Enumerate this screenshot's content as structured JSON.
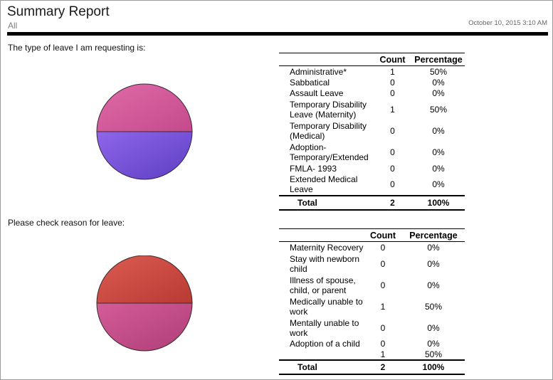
{
  "header": {
    "title": "Summary Report",
    "subtitle": "All",
    "date": "October 10, 2015 3:10 AM"
  },
  "sections": [
    {
      "question": "The type of leave I am requesting is:",
      "columns": {
        "count": "Count",
        "percentage": "Percentage"
      },
      "rows": [
        {
          "label": "Administrative*",
          "count": "1",
          "percentage": "50%",
          "color": "#8a5be0"
        },
        {
          "label": "Sabbatical",
          "count": "0",
          "percentage": "0%",
          "color": "#e8974a"
        },
        {
          "label": "Assault Leave",
          "count": "0",
          "percentage": "0%",
          "color": "#6ad98f"
        },
        {
          "label": "Temporary Disability Leave (Maternity)",
          "count": "1",
          "percentage": "50%",
          "color": "#d4589a"
        },
        {
          "label": "Temporary Disability (Medical)",
          "count": "0",
          "percentage": "0%",
          "color": "#a4de4a"
        },
        {
          "label": "Adoption- Temporary/Extended",
          "count": "0",
          "percentage": "0%",
          "color": "#4f95e8"
        },
        {
          "label": "FMLA- 1993",
          "count": "0",
          "percentage": "0%",
          "color": "#d94b4b"
        },
        {
          "label": "Extended Medical Leave",
          "count": "0",
          "percentage": "0%",
          "color": "#5fdc4a"
        }
      ],
      "total": {
        "label": "Total",
        "count": "2",
        "percentage": "100%"
      },
      "pie": {
        "top_color": "#d4589a",
        "bottom_color": "#7b50dc"
      }
    },
    {
      "question": "Please check reason for leave:",
      "columns": {
        "count": "Count",
        "percentage": "Percentage"
      },
      "rows": [
        {
          "label": "Maternity Recovery",
          "count": "0",
          "percentage": "0%",
          "color": "#8a5be0"
        },
        {
          "label": "Stay with newborn child",
          "count": "0",
          "percentage": "0%",
          "color": "#e8974a"
        },
        {
          "label": "Illness of spouse, child, or parent",
          "count": "0",
          "percentage": "0%",
          "color": "#6ad98f"
        },
        {
          "label": "Medically unable to work",
          "count": "1",
          "percentage": "50%",
          "color": "#d4589a"
        },
        {
          "label": "Mentally unable to work",
          "count": "0",
          "percentage": "0%",
          "color": "#a4de4a"
        },
        {
          "label": "Adoption of a child",
          "count": "0",
          "percentage": "0%",
          "color": "#4f95e8"
        },
        {
          "label": "",
          "count": "1",
          "percentage": "50%",
          "color": "#d94b4b"
        }
      ],
      "total": {
        "label": "Total",
        "count": "2",
        "percentage": "100%"
      },
      "pie": {
        "top_color": "#d0483f",
        "bottom_color": "#cc4d8a"
      }
    }
  ]
}
